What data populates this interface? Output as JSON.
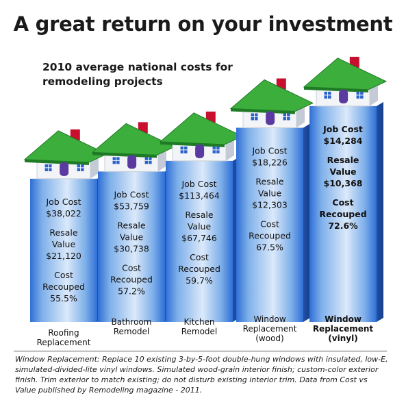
{
  "header": {
    "title": "A great return on your investment",
    "subtitle_line1": "2010 average national costs for",
    "subtitle_line2": "remodeling projects"
  },
  "chart_data": {
    "type": "bar",
    "categories": [
      [
        "Roofing",
        "Replacement"
      ],
      [
        "Bathroom",
        "Remodel"
      ],
      [
        "Kitchen",
        "Remodel"
      ],
      [
        "Window",
        "Replacement",
        "(wood)"
      ],
      [
        "Window",
        "Replacement",
        "(vinyl)"
      ]
    ],
    "stats": [
      {
        "job_cost": "$38,022",
        "resale_value": "$21,120",
        "cost_recouped": "55.5%"
      },
      {
        "job_cost": "$53,759",
        "resale_value": "$30,738",
        "cost_recouped": "57.2%"
      },
      {
        "job_cost": "$113,464",
        "resale_value": "$67,746",
        "cost_recouped": "59.7%"
      },
      {
        "job_cost": "$18,226",
        "resale_value": "$12,303",
        "cost_recouped": "67.5%"
      },
      {
        "job_cost": "$14,284",
        "resale_value": "$10,368",
        "cost_recouped": "72.6%"
      }
    ],
    "values": [
      55.5,
      57.2,
      59.7,
      67.5,
      72.6
    ],
    "highlight_index": 4,
    "labels": {
      "job_cost": "Job Cost",
      "resale_1": "Resale",
      "resale_2": "Value",
      "recouped_1": "Cost",
      "recouped_2": "Recouped"
    },
    "colors": {
      "bar_light": "#dbe9fa",
      "bar_mid": "#7fb0ea",
      "bar_dark": "#2f6fd6",
      "bar_side": "#1f4fa8",
      "roof": "#3cae3c",
      "roof_dark": "#1f7a25",
      "chimney": "#c8102e",
      "house": "#f2f4f7",
      "door": "#5a3aa0",
      "window": "#2a62c9"
    }
  },
  "footnote": "Window Replacement: Replace 10 existing 3-by-5-foot double-hung windows with insulated, low-E, simulated-divided-lite vinyl windows. Simulated wood-grain interior finish; custom-color exterior finish. Trim exterior to match existing; do not disturb existing interior trim. Data from Cost vs Value published by Remodeling magazine - 2011."
}
